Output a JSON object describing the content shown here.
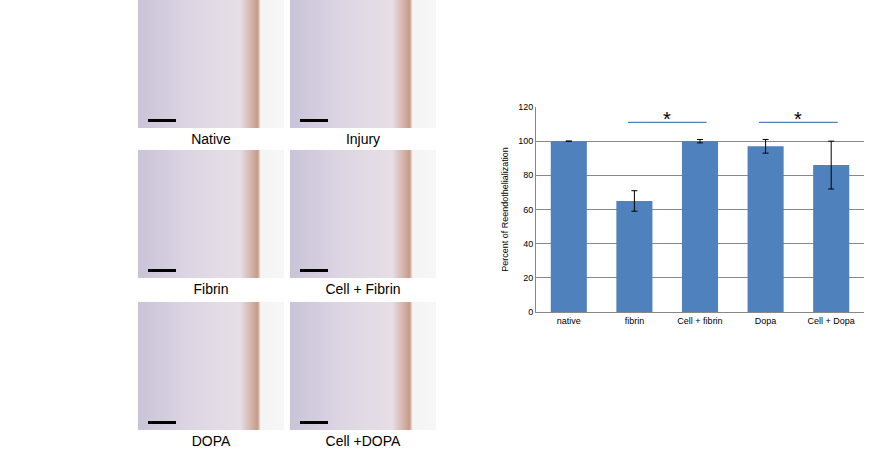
{
  "chart_data": {
    "type": "bar",
    "categories": [
      "native",
      "fibrin",
      "Cell + fibrin",
      "Dopa",
      "Cell + Dopa"
    ],
    "values": [
      100,
      65,
      100,
      97,
      86
    ],
    "errors": [
      0,
      6,
      1,
      4,
      14
    ],
    "color": "#4f81bd",
    "y_label": "Percent of Reendothelialization",
    "ylim": [
      0,
      120
    ],
    "yticks": [
      0,
      20,
      40,
      60,
      80,
      100,
      120
    ],
    "grid": true,
    "annotations": [
      {
        "text": "*",
        "from": "fibrin",
        "to": "Cell + fibrin",
        "y": 111
      },
      {
        "text": "*",
        "from": "Dopa",
        "to": "Cell + Dopa",
        "y": 111
      }
    ]
  },
  "panels": {
    "labels": [
      "Native",
      "Injury",
      "Fibrin",
      "Cell + Fibrin",
      "DOPA",
      "Cell +DOPA"
    ]
  }
}
